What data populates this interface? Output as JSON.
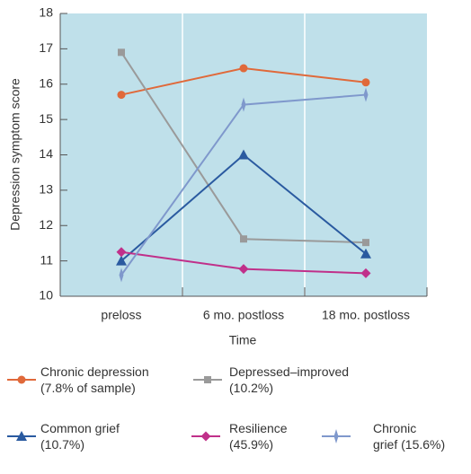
{
  "chart_data": {
    "type": "line",
    "x_label": "Time",
    "y_label": "Depression symptom score",
    "categories": [
      "preloss",
      "6 mo. postloss",
      "18 mo. postloss"
    ],
    "ylim": [
      10,
      18
    ],
    "yticks": [
      10,
      11,
      12,
      13,
      14,
      15,
      16,
      17,
      18
    ],
    "series": [
      {
        "name": "Chronic depression\n(7.8% of sample)",
        "color": "#e0693a",
        "marker": "circle",
        "values": [
          15.7,
          16.45,
          16.05
        ]
      },
      {
        "name": "Depressed–improved\n(10.2%)",
        "color": "#9a9a9a",
        "marker": "square",
        "values": [
          16.9,
          11.62,
          11.52
        ]
      },
      {
        "name": "Common grief\n(10.7%)",
        "color": "#2a5aa0",
        "marker": "triangle",
        "values": [
          11.0,
          14.0,
          11.2
        ]
      },
      {
        "name": "Resilience\n(45.9%)",
        "color": "#c0308a",
        "marker": "diamond",
        "values": [
          11.25,
          10.77,
          10.65
        ]
      },
      {
        "name": "Chronic\ngrief (15.6%)",
        "color": "#7f98cc",
        "marker": "star",
        "values": [
          10.6,
          15.42,
          15.7
        ]
      }
    ]
  }
}
